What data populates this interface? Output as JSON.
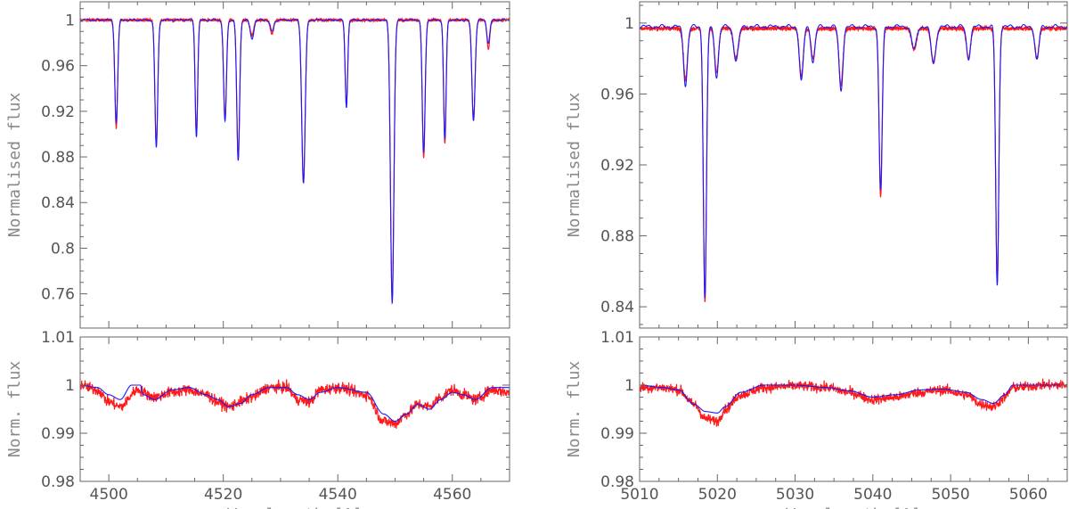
{
  "colors": {
    "observed": "#ff1a1a",
    "model": "#1a1aff",
    "axis": "#666666",
    "text": "#555555"
  },
  "chart_data": [
    {
      "type": "line",
      "title": "",
      "xlabel": "",
      "ylabel": "Normalised flux",
      "xlim": [
        4495,
        4570
      ],
      "ylim": [
        0.73,
        1.016
      ],
      "yticks": [
        0.76,
        0.8,
        0.84,
        0.88,
        0.92,
        0.96,
        1
      ],
      "ytick_labels": [
        "0.76",
        "0.8",
        "0.84",
        "0.88",
        "0.92",
        "0.96",
        "1"
      ],
      "xticks": [
        4500,
        4520,
        4540,
        4560
      ],
      "series": [
        {
          "name": "observed",
          "color": "#ff1a1a",
          "continuum": 1.0,
          "lines": [
            [
              4501.3,
              0.906,
              0.25
            ],
            [
              4508.3,
              0.891,
              0.25
            ],
            [
              4515.3,
              0.899,
              0.22
            ],
            [
              4520.3,
              0.913,
              0.25
            ],
            [
              4522.6,
              0.879,
              0.25
            ],
            [
              4525.0,
              0.986,
              0.3
            ],
            [
              4528.5,
              0.988,
              0.3
            ],
            [
              4534.0,
              0.857,
              0.3
            ],
            [
              4541.5,
              0.926,
              0.22
            ],
            [
              4549.5,
              0.757,
              0.3
            ],
            [
              4555.0,
              0.88,
              0.25
            ],
            [
              4558.7,
              0.892,
              0.22
            ],
            [
              4563.7,
              0.912,
              0.28
            ],
            [
              4566.3,
              0.975,
              0.25
            ]
          ]
        },
        {
          "name": "model",
          "color": "#1a1aff",
          "continuum": 1.0,
          "lines": [
            [
              4501.3,
              0.91,
              0.25
            ],
            [
              4508.3,
              0.888,
              0.25
            ],
            [
              4515.3,
              0.898,
              0.22
            ],
            [
              4520.3,
              0.911,
              0.25
            ],
            [
              4522.6,
              0.876,
              0.25
            ],
            [
              4525.0,
              0.983,
              0.3
            ],
            [
              4528.5,
              0.99,
              0.3
            ],
            [
              4534.0,
              0.857,
              0.3
            ],
            [
              4541.5,
              0.924,
              0.22
            ],
            [
              4549.5,
              0.752,
              0.3
            ],
            [
              4555.0,
              0.883,
              0.25
            ],
            [
              4558.7,
              0.895,
              0.22
            ],
            [
              4563.7,
              0.913,
              0.28
            ],
            [
              4566.3,
              0.98,
              0.25
            ]
          ]
        }
      ]
    },
    {
      "type": "line",
      "title": "",
      "xlabel": "Wavelength [A]",
      "ylabel": "Norm. flux",
      "xlim": [
        4495,
        4570
      ],
      "ylim": [
        0.98,
        1.01
      ],
      "yticks": [
        0.98,
        0.99,
        1,
        1.01
      ],
      "ytick_labels": [
        "0.98",
        "0.99",
        "1",
        "1.01"
      ],
      "xticks": [
        4500,
        4520,
        4540,
        4560
      ],
      "xtick_labels": [
        "4500",
        "4520",
        "4540",
        "4560"
      ],
      "series": [
        {
          "name": "observed",
          "color": "#ff1a1a",
          "noise": 0.0011,
          "points": [
            [
              4495,
              1.0
            ],
            [
              4498,
              0.999
            ],
            [
              4500,
              0.9965
            ],
            [
              4502,
              0.9955
            ],
            [
              4505,
              0.999
            ],
            [
              4508,
              0.9975
            ],
            [
              4511,
              0.9985
            ],
            [
              4514,
              0.999
            ],
            [
              4517,
              0.998
            ],
            [
              4519,
              0.9965
            ],
            [
              4521,
              0.9955
            ],
            [
              4523,
              0.9965
            ],
            [
              4525,
              0.9975
            ],
            [
              4528,
              0.9995
            ],
            [
              4531,
              0.9995
            ],
            [
              4533,
              0.997
            ],
            [
              4535,
              0.9965
            ],
            [
              4537,
              0.999
            ],
            [
              4540,
              0.9995
            ],
            [
              4545,
              0.998
            ],
            [
              4548,
              0.9925
            ],
            [
              4550,
              0.992
            ],
            [
              4552,
              0.994
            ],
            [
              4554,
              0.996
            ],
            [
              4556,
              0.9955
            ],
            [
              4558,
              0.9975
            ],
            [
              4560,
              0.999
            ],
            [
              4562,
              0.998
            ],
            [
              4564,
              0.997
            ],
            [
              4567,
              0.999
            ],
            [
              4570,
              0.9985
            ]
          ]
        },
        {
          "name": "model",
          "color": "#1a1aff",
          "points": [
            [
              4495,
              1.0
            ],
            [
              4498,
              0.9995
            ],
            [
              4500,
              0.998
            ],
            [
              4502,
              0.997
            ],
            [
              4504,
              1.0
            ],
            [
              4505.5,
              1.0
            ],
            [
              4506,
              0.998
            ],
            [
              4508,
              0.997
            ],
            [
              4511,
              0.999
            ],
            [
              4514,
              0.9995
            ],
            [
              4517,
              0.998
            ],
            [
              4519,
              0.997
            ],
            [
              4521,
              0.9955
            ],
            [
              4523,
              0.9962
            ],
            [
              4525,
              0.998
            ],
            [
              4528,
              0.9995
            ],
            [
              4531,
              0.9995
            ],
            [
              4533,
              0.998
            ],
            [
              4535,
              0.997
            ],
            [
              4537,
              0.9985
            ],
            [
              4540,
              0.9995
            ],
            [
              4545,
              0.9985
            ],
            [
              4548,
              0.994
            ],
            [
              4550,
              0.9925
            ],
            [
              4552,
              0.994
            ],
            [
              4554,
              0.996
            ],
            [
              4556,
              0.995
            ],
            [
              4558,
              0.997
            ],
            [
              4560,
              0.9985
            ],
            [
              4562,
              0.998
            ],
            [
              4564,
              0.997
            ],
            [
              4567,
              0.9995
            ],
            [
              4570,
              0.9995
            ]
          ]
        }
      ]
    },
    {
      "type": "line",
      "title": "",
      "xlabel": "",
      "ylabel": "Normalised flux",
      "xlim": [
        5010,
        5065
      ],
      "ylim": [
        0.828,
        1.012
      ],
      "yticks": [
        0.84,
        0.88,
        0.92,
        0.96,
        1
      ],
      "ytick_labels": [
        "0.84",
        "0.88",
        "0.92",
        "0.96",
        "1"
      ],
      "xticks": [
        5010,
        5020,
        5030,
        5040,
        5050,
        5060
      ],
      "series": [
        {
          "name": "observed",
          "color": "#ff1a1a",
          "continuum": 0.997,
          "lines": [
            [
              5015.9,
              0.968,
              0.25
            ],
            [
              5018.4,
              0.843,
              0.2
            ],
            [
              5019.9,
              0.972,
              0.25
            ],
            [
              5022.4,
              0.98,
              0.3
            ],
            [
              5030.8,
              0.97,
              0.25
            ],
            [
              5032.3,
              0.98,
              0.25
            ],
            [
              5035.9,
              0.965,
              0.25
            ],
            [
              5041.0,
              0.902,
              0.2
            ],
            [
              5045.3,
              0.985,
              0.3
            ],
            [
              5047.8,
              0.978,
              0.3
            ],
            [
              5052.3,
              0.98,
              0.25
            ],
            [
              5056.0,
              0.853,
              0.2
            ],
            [
              5061.1,
              0.98,
              0.25
            ]
          ]
        },
        {
          "name": "model",
          "color": "#1a1aff",
          "continuum": 0.998,
          "lines": [
            [
              5015.9,
              0.965,
              0.25
            ],
            [
              5018.4,
              0.845,
              0.2
            ],
            [
              5019.9,
              0.97,
              0.25
            ],
            [
              5022.4,
              0.979,
              0.3
            ],
            [
              5030.8,
              0.967,
              0.25
            ],
            [
              5032.3,
              0.978,
              0.25
            ],
            [
              5035.9,
              0.962,
              0.25
            ],
            [
              5041.0,
              0.906,
              0.2
            ],
            [
              5045.3,
              0.985,
              0.3
            ],
            [
              5047.8,
              0.977,
              0.3
            ],
            [
              5052.3,
              0.98,
              0.25
            ],
            [
              5056.0,
              0.852,
              0.2
            ],
            [
              5061.1,
              0.979,
              0.25
            ]
          ]
        }
      ]
    },
    {
      "type": "line",
      "title": "",
      "xlabel": "Wavelength [A]",
      "ylabel": "Norm. flux",
      "xlim": [
        5010,
        5065
      ],
      "ylim": [
        0.98,
        1.01
      ],
      "yticks": [
        0.98,
        0.99,
        1,
        1.01
      ],
      "ytick_labels": [
        "0.98",
        "0.99",
        "1",
        "1.01"
      ],
      "xticks": [
        5010,
        5020,
        5030,
        5040,
        5050,
        5060
      ],
      "xtick_labels": [
        "5010",
        "5020",
        "5030",
        "5040",
        "5050",
        "5060"
      ],
      "series": [
        {
          "name": "observed",
          "color": "#ff1a1a",
          "noise": 0.001,
          "points": [
            [
              5010,
              0.9995
            ],
            [
              5013,
              0.9995
            ],
            [
              5015,
              0.999
            ],
            [
              5017,
              0.996
            ],
            [
              5018.5,
              0.993
            ],
            [
              5020,
              0.9925
            ],
            [
              5021,
              0.995
            ],
            [
              5023,
              0.998
            ],
            [
              5026,
              0.9995
            ],
            [
              5030,
              0.9998
            ],
            [
              5034,
              0.9995
            ],
            [
              5037,
              0.9985
            ],
            [
              5040,
              0.997
            ],
            [
              5043,
              0.9975
            ],
            [
              5046,
              0.9985
            ],
            [
              5049,
              0.999
            ],
            [
              5052,
              0.998
            ],
            [
              5054,
              0.996
            ],
            [
              5055.5,
              0.9955
            ],
            [
              5057,
              0.9975
            ],
            [
              5058,
              0.9995
            ],
            [
              5062,
              1.0
            ],
            [
              5065,
              1.0
            ]
          ]
        },
        {
          "name": "model",
          "color": "#1a1aff",
          "points": [
            [
              5010,
              1.0
            ],
            [
              5013,
              0.9995
            ],
            [
              5015,
              0.999
            ],
            [
              5017,
              0.996
            ],
            [
              5018.5,
              0.9945
            ],
            [
              5020,
              0.9942
            ],
            [
              5021,
              0.9955
            ],
            [
              5023,
              0.9985
            ],
            [
              5026,
              1.0
            ],
            [
              5030,
              1.0
            ],
            [
              5034,
              0.9995
            ],
            [
              5037,
              0.9988
            ],
            [
              5040,
              0.9975
            ],
            [
              5043,
              0.998
            ],
            [
              5046,
              0.999
            ],
            [
              5049,
              0.9992
            ],
            [
              5052,
              0.9985
            ],
            [
              5054,
              0.997
            ],
            [
              5055.5,
              0.9962
            ],
            [
              5057,
              0.998
            ],
            [
              5058,
              1.0
            ],
            [
              5062,
              1.0
            ],
            [
              5065,
              1.0
            ]
          ]
        }
      ]
    }
  ]
}
